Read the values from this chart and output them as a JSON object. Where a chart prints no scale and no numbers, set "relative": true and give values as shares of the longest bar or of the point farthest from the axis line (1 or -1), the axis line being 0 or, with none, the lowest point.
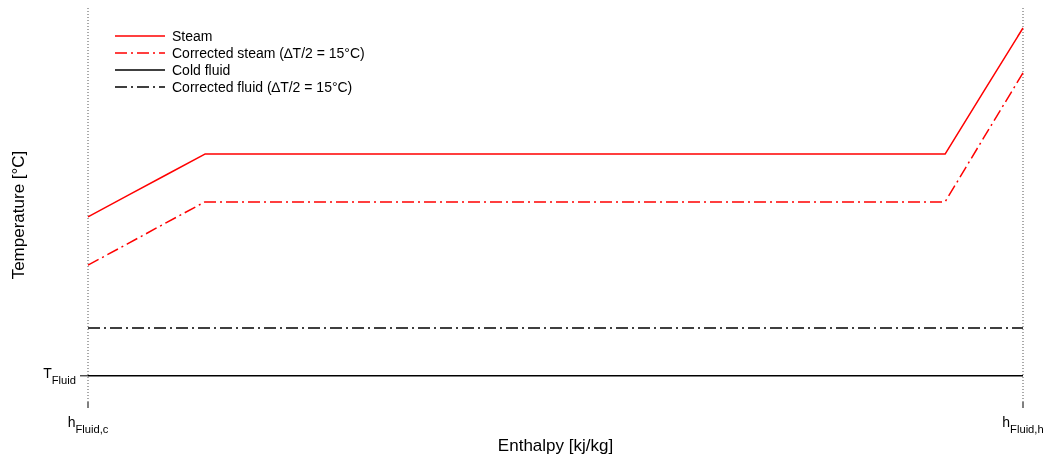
{
  "chart_data": {
    "type": "line",
    "relative": true,
    "xlabel": "Enthalpy [kj/kg]",
    "ylabel": "Temperature [°C]",
    "categories": [
      "h$_{Fluid,c}$",
      null,
      null,
      null,
      null,
      null,
      null,
      null,
      null,
      null,
      null,
      null,
      null,
      null,
      null,
      null,
      null,
      null,
      null,
      null,
      null,
      null,
      null,
      null,
      "h$_{Fluid,h}$"
    ],
    "grid": "x",
    "legend": "top left",
    "annotations": [
      "T$_{Fluid}$"
    ],
    "series": [
      {
        "name": "Steam",
        "color": "#ff0000",
        "line_style": "solid",
        "values": [
          0.495,
          0.551,
          0.607,
          0.663,
          0.663,
          0.663,
          0.663,
          0.663,
          0.663,
          0.663,
          0.663,
          0.663,
          0.663,
          0.663,
          0.663,
          0.663,
          0.663,
          0.663,
          0.663,
          0.663,
          0.663,
          0.663,
          0.663,
          0.832,
          1
        ]
      },
      {
        "name": "Corrected steam (∆T/2 = 15°C)",
        "color": "#ff0000",
        "line_style": "dashed",
        "values": [
          0.366,
          0.422,
          0.479,
          0.535,
          0.535,
          0.535,
          0.535,
          0.535,
          0.535,
          0.535,
          0.535,
          0.535,
          0.535,
          0.535,
          0.535,
          0.535,
          0.535,
          0.535,
          0.535,
          0.535,
          0.535,
          0.535,
          0.535,
          0.708,
          0.88
        ]
      },
      {
        "name": "Cold fluid",
        "color": "#000000",
        "line_style": "solid",
        "values": [
          0.07,
          0.07,
          0.07,
          0.07,
          0.07,
          0.07,
          0.07,
          0.07,
          0.07,
          0.07,
          0.07,
          0.07,
          0.07,
          0.07,
          0.07,
          0.07,
          0.07,
          0.07,
          0.07,
          0.07,
          0.07,
          0.07,
          0.07,
          0.07,
          0.07
        ]
      },
      {
        "name": "Corrected fluid (∆T/2 = 15°C)",
        "color": "#000000",
        "line_style": "dashed",
        "values": [
          0.198,
          0.198,
          0.198,
          0.198,
          0.198,
          0.198,
          0.198,
          0.198,
          0.198,
          0.198,
          0.198,
          0.198,
          0.198,
          0.198,
          0.198,
          0.198,
          0.198,
          0.198,
          0.198,
          0.198,
          0.198,
          0.198,
          0.198,
          0.198,
          0.198
        ]
      }
    ]
  }
}
